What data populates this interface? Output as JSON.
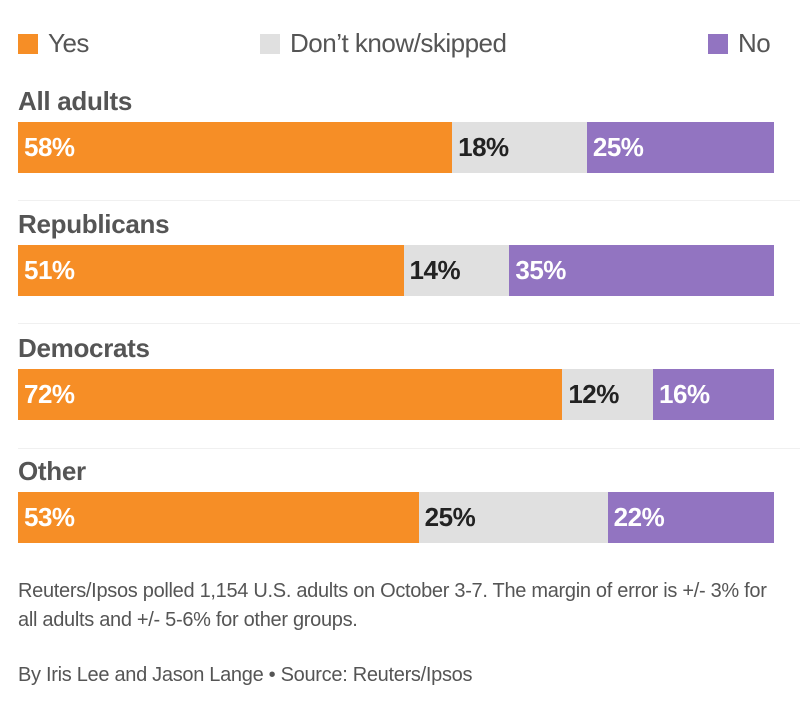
{
  "chart_data": {
    "type": "bar",
    "orientation": "horizontal-stacked-100",
    "title": "",
    "legend": {
      "placement": "top",
      "entries": [
        {
          "name": "Yes",
          "color": "#f68e26"
        },
        {
          "name": "Don’t know/skipped",
          "color": "#e0e0e0"
        },
        {
          "name": "No",
          "color": "#9274c1"
        }
      ]
    },
    "categories": [
      "All adults",
      "Republicans",
      "Democrats",
      "Other"
    ],
    "series": [
      {
        "name": "Yes",
        "color": "#f68e26",
        "label_color": "#ffffff",
        "values": [
          58,
          51,
          72,
          53
        ]
      },
      {
        "name": "Don’t know/skipped",
        "color": "#e0e0e0",
        "label_color": "#222222",
        "values": [
          18,
          14,
          12,
          25
        ]
      },
      {
        "name": "No",
        "color": "#9274c1",
        "label_color": "#ffffff",
        "values": [
          25,
          35,
          16,
          22
        ]
      }
    ],
    "labels": [
      [
        "58%",
        "18%",
        "25%"
      ],
      [
        "51%",
        "14%",
        "35%"
      ],
      [
        "72%",
        "12%",
        "16%"
      ],
      [
        "53%",
        "25%",
        "22%"
      ]
    ],
    "xlim": [
      0,
      100
    ]
  },
  "footer": {
    "note": "Reuters/Ipsos polled 1,154 U.S. adults on October 3-7. The margin of error is +/- 3% for all adults and +/- 5-6% for other groups.",
    "byline": "By Iris Lee and Jason Lange • Source: Reuters/Ipsos"
  }
}
